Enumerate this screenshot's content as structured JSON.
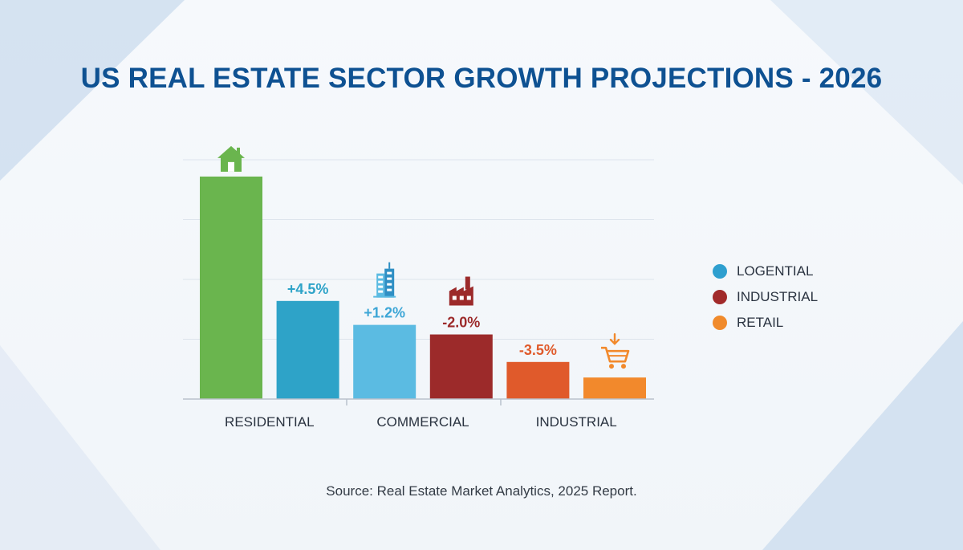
{
  "colors": {
    "title": "#0e5192",
    "grid": "#dde4ec",
    "axis": "#b9c2cc"
  },
  "title": "US REAL ESTATE SECTOR GROWTH PROJECTIONS - 2026",
  "source": "Source: Real Estate Market Analytics, 2025 Report.",
  "legend": [
    {
      "label": "LOGENTIAL",
      "color": "#2e9fcf"
    },
    {
      "label": "INDUSTRIAL",
      "color": "#a12a2a"
    },
    {
      "label": "RETAIL",
      "color": "#f08a2b"
    }
  ],
  "chart_data": {
    "type": "bar",
    "title": "US REAL ESTATE SECTOR GROWTH PROJECTIONS - 2026",
    "xlabel": "",
    "ylabel": "",
    "x_tick_labels": [
      "RESIDENTIAL",
      "COMMERCIAL",
      "INDUSTRIAL"
    ],
    "grid": true,
    "legend_position": "right",
    "ylim": [
      0,
      1
    ],
    "bars": [
      {
        "value": 0.93,
        "label": "",
        "color": "#6ab54e",
        "label_color": "",
        "icon": "house-icon"
      },
      {
        "value": 0.41,
        "label": "+4.5%",
        "color": "#2ea3c8",
        "label_color": "#2ea3c8",
        "icon": ""
      },
      {
        "value": 0.31,
        "label": "+1.2%",
        "color": "#5bbbe2",
        "label_color": "#3ca6d6",
        "icon": "building-icon"
      },
      {
        "value": 0.27,
        "label": "-2.0%",
        "color": "#9c2a2a",
        "label_color": "#9c2a2a",
        "icon": "factory-icon"
      },
      {
        "value": 0.155,
        "label": "-3.5%",
        "color": "#e05a2b",
        "label_color": "#e05a2b",
        "icon": ""
      },
      {
        "value": 0.09,
        "label": "",
        "color": "#f2892c",
        "label_color": "",
        "icon": "shopping-cart-icon"
      }
    ]
  }
}
